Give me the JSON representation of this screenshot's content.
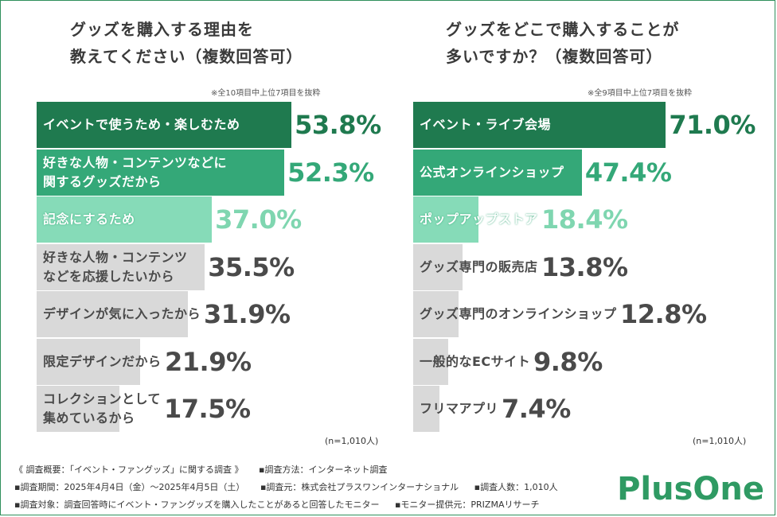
{
  "colors": {
    "tier1": "#1f7a4f",
    "tier2": "#34a878",
    "tier3": "#86dbb8",
    "other": "#d9d9d9",
    "text_dark": "#4a4a4a",
    "text_white": "#ffffff",
    "brand": "#2f9a63"
  },
  "chart_data": [
    {
      "type": "bar",
      "orientation": "horizontal",
      "title_lines": [
        "グッズを購入する理由を",
        "教えてください（複数回答可）"
      ],
      "note": "※全10項目中上位7項目を抜粋",
      "n_label": "(n=1,010人)",
      "categories": [
        [
          "イベントで使うため・楽しむため"
        ],
        [
          "好きな人物・コンテンツなどに",
          "関するグッズだから"
        ],
        [
          "記念にするため"
        ],
        [
          "好きな人物・コンテンツ",
          "などを応援したいから"
        ],
        [
          "デザインが気に入ったから"
        ],
        [
          "限定デザインだから"
        ],
        [
          "コレクションとして",
          "集めているから"
        ]
      ],
      "values": [
        53.8,
        52.3,
        37.0,
        35.5,
        31.9,
        21.9,
        17.5
      ],
      "value_labels": [
        "53.8%",
        "52.3%",
        "37.0%",
        "35.5%",
        "31.9%",
        "21.9%",
        "17.5%"
      ],
      "xlim": [
        0,
        60
      ]
    },
    {
      "type": "bar",
      "orientation": "horizontal",
      "title_lines": [
        "グッズをどこで購入することが",
        "多いですか？（複数回答可）"
      ],
      "note": "※全9項目中上位7項目を抜粋",
      "n_label": "(n=1,010人)",
      "categories": [
        [
          "イベント・ライブ会場"
        ],
        [
          "公式オンラインショップ"
        ],
        [
          "ポップアップストア"
        ],
        [
          "グッズ専門の販売店"
        ],
        [
          "グッズ専門のオンラインショップ"
        ],
        [
          "一般的なECサイト"
        ],
        [
          "フリマアプリ"
        ]
      ],
      "values": [
        71.0,
        47.4,
        18.4,
        13.8,
        12.8,
        9.8,
        7.4
      ],
      "value_labels": [
        "71.0%",
        "47.4%",
        "18.4%",
        "13.8%",
        "12.8%",
        "9.8%",
        "7.4%"
      ],
      "xlim": [
        0,
        75
      ]
    }
  ],
  "footer": {
    "line1": [
      "《 調査概要：「イベント・ファングッズ」に関する調査 》",
      "▪調査方法：インターネット調査"
    ],
    "line2": [
      "▪調査期間：2025年4月4日（金）〜2025年4月5日（土）",
      "▪調査元：株式会社プラスワンインターナショナル",
      "▪調査人数：1,010人"
    ],
    "line3": [
      "▪調査対象：調査回答時にイベント・ファングッズを購入したことがあると回答したモニター",
      "▪モニター提供元：PRIZMAリサーチ"
    ]
  },
  "brand": {
    "logo_text": "PlusOne"
  }
}
